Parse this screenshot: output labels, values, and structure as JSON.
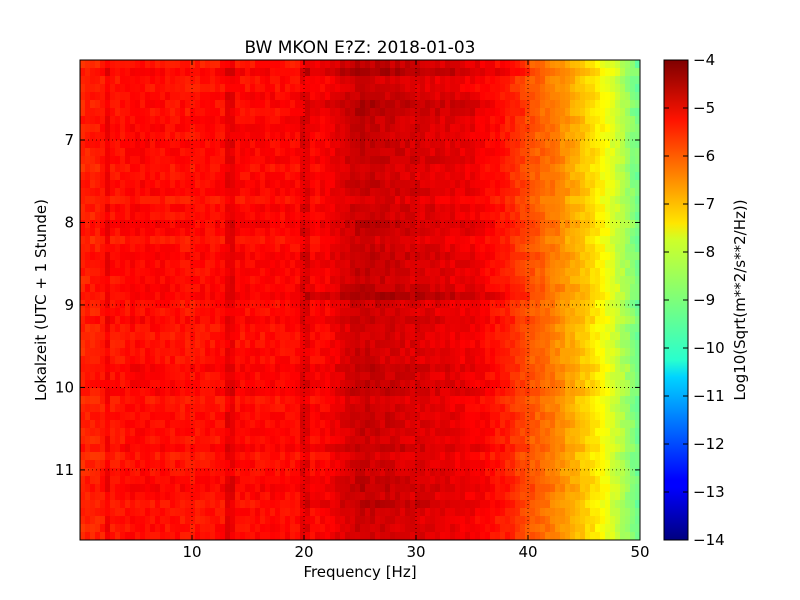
{
  "chart_data": {
    "type": "heatmap",
    "title": "BW MKON E?Z: 2018-01-03",
    "xlabel": "Frequency [Hz]",
    "ylabel": "Lokalzeit (UTC + 1 Stunde)",
    "xlim": [
      0,
      50
    ],
    "ylim": [
      11.85,
      6.03
    ],
    "x_ticks": [
      10,
      20,
      30,
      40,
      50
    ],
    "y_ticks": [
      7,
      8,
      9,
      10,
      11
    ],
    "grid": true,
    "colorbar": {
      "label": "Log10(Sqrt(m**2/s**2/Hz))",
      "range": [
        -14,
        -4
      ],
      "ticks": [
        -4,
        -5,
        -6,
        -7,
        -8,
        -9,
        -10,
        -11,
        -12,
        -13,
        -14
      ],
      "tick_labels": [
        "−4",
        "−5",
        "−6",
        "−7",
        "−8",
        "−9",
        "−10",
        "−11",
        "−12",
        "−13",
        "−14"
      ],
      "colormap": "jet"
    },
    "frequency_profile": {
      "hz": [
        0,
        5,
        10,
        15,
        20,
        22,
        25,
        30,
        35,
        38,
        40,
        42,
        44,
        46,
        48,
        50
      ],
      "value": [
        -5.6,
        -5.3,
        -5.4,
        -5.3,
        -5.3,
        -5.2,
        -4.7,
        -4.9,
        -5.1,
        -5.5,
        -6.0,
        -6.4,
        -6.9,
        -7.5,
        -8.3,
        -9.2
      ]
    },
    "vertical_lines_hz": [
      2.5,
      13.5,
      20
    ],
    "dark_bands_hours": [
      6.1,
      6.6,
      8.9,
      11.4
    ]
  }
}
